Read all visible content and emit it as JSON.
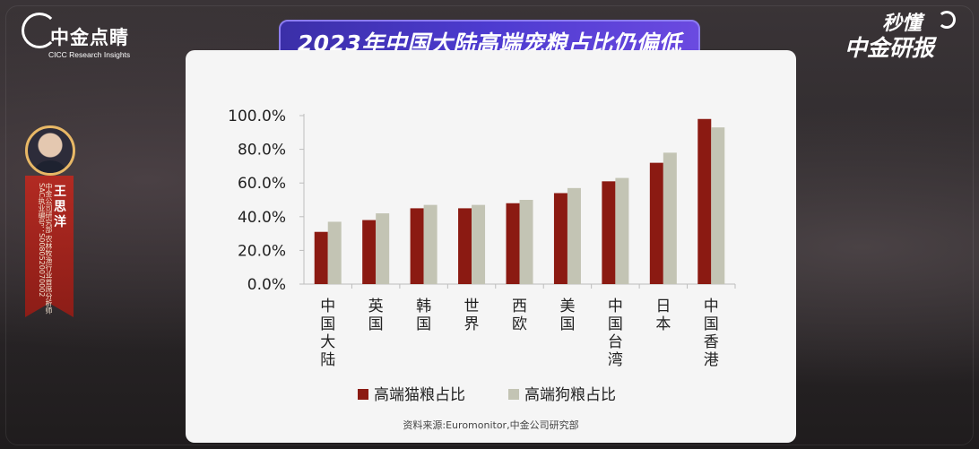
{
  "logo": {
    "name": "中金点睛",
    "subtitle": "CICC Research Insights"
  },
  "brand": {
    "line1": "秒懂",
    "line2": "中金研报"
  },
  "speaker": {
    "name": "王思洋",
    "info": "中金公司研究部 农林牧渔行业首席分析师 SAC执业编号：S0080520070002"
  },
  "chart_title": "2023年中国大陆高端宠粮占比仍偏低",
  "source": "资料来源:Euromonitor,中金公司研究部",
  "colors": {
    "title_bg": "#4b3bc9",
    "cat_series": "#8b1a12",
    "dog_series": "#c3c4b4",
    "panel": "#f5f5f5"
  },
  "chart_data": {
    "type": "bar",
    "title": "2023年中国大陆高端宠粮占比仍偏低",
    "categories": [
      "中国大陆",
      "英国",
      "韩国",
      "世界",
      "西欧",
      "美国",
      "中国台湾",
      "日本",
      "中国香港"
    ],
    "series": [
      {
        "name": "高端猫粮占比",
        "color": "#8b1a12",
        "values": [
          31,
          38,
          45,
          45,
          48,
          54,
          61,
          72,
          98
        ]
      },
      {
        "name": "高端狗粮占比",
        "color": "#c3c4b4",
        "values": [
          37,
          42,
          47,
          47,
          50,
          57,
          63,
          78,
          93
        ]
      }
    ],
    "yticks": [
      "0.0%",
      "20.0%",
      "40.0%",
      "60.0%",
      "80.0%",
      "100.0%"
    ],
    "ylim": [
      0,
      100
    ],
    "grid": false,
    "legend": "bottom"
  }
}
